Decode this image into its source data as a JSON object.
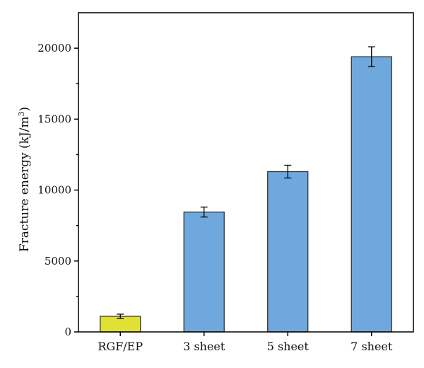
{
  "chart_data": {
    "type": "bar",
    "categories": [
      "RGF/EP",
      "3 sheet",
      "5 sheet",
      "7 sheet"
    ],
    "values": [
      1100,
      8450,
      11300,
      19400
    ],
    "errors": [
      150,
      350,
      450,
      700
    ],
    "colors": [
      "#e0e035",
      "#6fa8dc",
      "#6fa8dc",
      "#6fa8dc"
    ],
    "ylabel": "Fracture energy (kJ/m",
    "ylabel_superscript": "3",
    "ylabel_suffix": ")",
    "ylim": [
      0,
      22500
    ],
    "yticks": [
      "0",
      "5000",
      "10000",
      "15000",
      "20000"
    ],
    "ytick_values": [
      0,
      5000,
      10000,
      15000,
      20000
    ],
    "grid": false
  }
}
